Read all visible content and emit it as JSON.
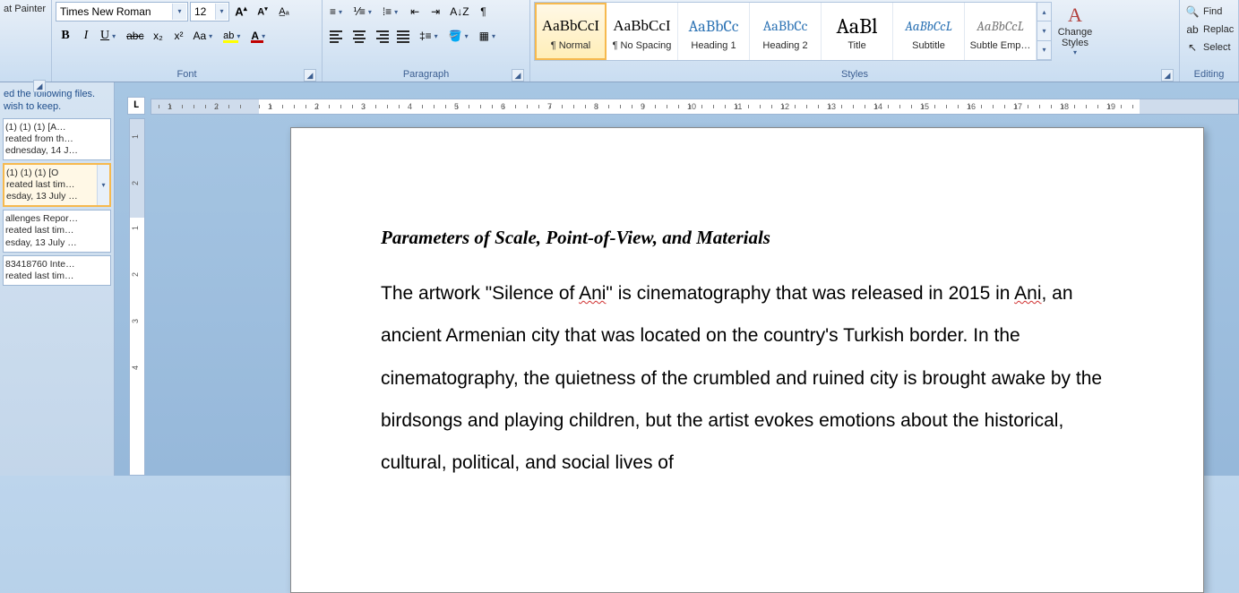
{
  "ribbon": {
    "clipboard": {
      "format_painter": "at Painter",
      "label": ""
    },
    "font": {
      "name": "Times New Roman",
      "size": "12",
      "label": "Font",
      "highlight_color": "#ffff00",
      "font_color": "#c00000"
    },
    "paragraph": {
      "label": "Paragraph"
    },
    "styles": {
      "label": "Styles",
      "items": [
        {
          "preview": "AaBbCcI",
          "label": "¶ Normal",
          "font": "Times New Roman",
          "color": "#000000",
          "italic": false,
          "selected": true,
          "size": 17
        },
        {
          "preview": "AaBbCcI",
          "label": "¶ No Spacing",
          "font": "Times New Roman",
          "color": "#000000",
          "italic": false,
          "selected": false,
          "size": 17
        },
        {
          "preview": "AaBbCc",
          "label": "Heading 1",
          "font": "Cambria",
          "color": "#2e74b5",
          "italic": false,
          "selected": false,
          "size": 18
        },
        {
          "preview": "AaBbCc",
          "label": "Heading 2",
          "font": "Cambria",
          "color": "#2e74b5",
          "italic": false,
          "selected": false,
          "size": 16
        },
        {
          "preview": "AaBl",
          "label": "Title",
          "font": "Cambria",
          "color": "#000000",
          "italic": false,
          "selected": false,
          "size": 24
        },
        {
          "preview": "AaBbCcL",
          "label": "Subtitle",
          "font": "Cambria",
          "color": "#2e74b5",
          "italic": true,
          "selected": false,
          "size": 15
        },
        {
          "preview": "AaBbCcL",
          "label": "Subtle Emp…",
          "font": "Cambria",
          "color": "#7a7a7a",
          "italic": true,
          "selected": false,
          "size": 15
        }
      ],
      "change_styles": "Change Styles"
    },
    "editing": {
      "label": "Editing",
      "find": "Find",
      "replace": "Replac",
      "select": "Select"
    }
  },
  "recovery": {
    "msg1": "ed the following files.",
    "msg2": "wish to keep.",
    "items": [
      {
        "title": "(1) (1) (1)  [A…",
        "line2": "reated from th…",
        "line3": "ednesday, 14 J…",
        "selected": false
      },
      {
        "title": "(1) (1) (1)  [O",
        "line2": "reated last tim…",
        "line3": "esday, 13 July …",
        "selected": true
      },
      {
        "title": "allenges Repor…",
        "line2": "reated last tim…",
        "line3": "esday, 13 July …",
        "selected": false
      },
      {
        "title": "83418760 Inte…",
        "line2": "reated last tim…",
        "line3": "",
        "selected": false
      }
    ]
  },
  "ruler": {
    "h_numbers": [
      "2",
      "1",
      "1",
      "2",
      "3",
      "4",
      "5",
      "6",
      "7",
      "8",
      "9",
      "10",
      "11",
      "12",
      "13",
      "14",
      "15",
      "16",
      "17",
      "18",
      "19"
    ],
    "v_numbers": [
      "2",
      "1",
      "1",
      "2",
      "3",
      "4"
    ]
  },
  "document": {
    "heading": "Parameters of Scale, Point-of-View, and Materials",
    "p1a": "The artwork \"Silence of ",
    "p1_sq1": "Ani",
    "p1b": "\" is cinematography that was released in 2015 in ",
    "p1_sq2": "Ani",
    "p1c": ", an ancient Armenian city that was located on the country's Turkish border. In the cinematography, the quietness of the crumbled and ruined city is brought awake by the birdsongs and playing children, but the artist evokes emotions about the historical, cultural, political, and social lives of"
  },
  "colors": {
    "ribbon_bg_top": "#e9f0f8",
    "ribbon_bg_bottom": "#c9ddf1",
    "accent_orange": "#f6b94e",
    "link_blue": "#1f4e8c"
  }
}
